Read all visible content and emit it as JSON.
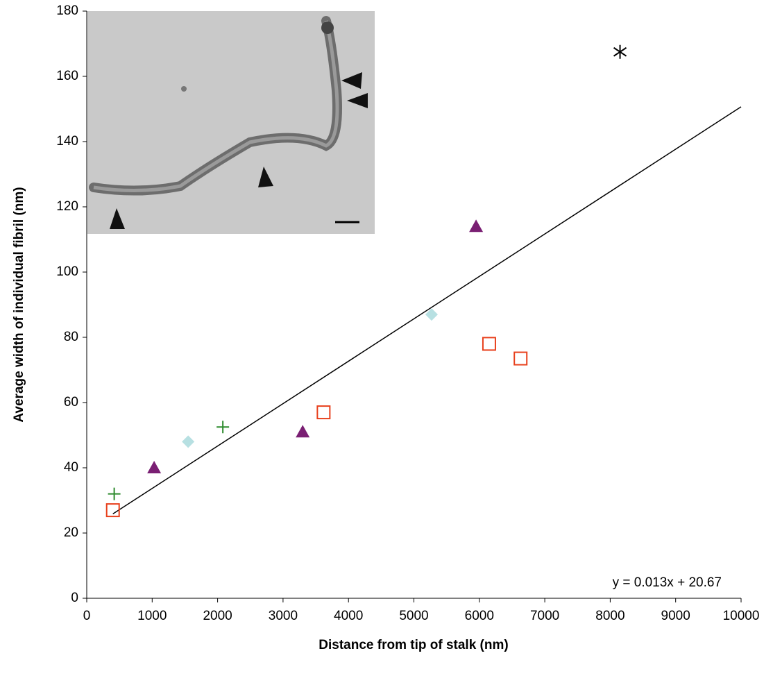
{
  "chart_data": {
    "type": "scatter",
    "xlabel": "Distance from tip of stalk (nm)",
    "ylabel": "Average width of individual fibril (nm)",
    "xlim": [
      0,
      10000
    ],
    "ylim": [
      0,
      180
    ],
    "xticks": [
      0,
      1000,
      2000,
      3000,
      4000,
      5000,
      6000,
      7000,
      8000,
      9000,
      10000
    ],
    "yticks": [
      0,
      20,
      40,
      60,
      80,
      100,
      120,
      140,
      160,
      180
    ],
    "grid": false,
    "series": [
      {
        "marker": "open-square",
        "color": "#e8401c",
        "x": [
          400,
          3620,
          6150,
          6630
        ],
        "values": [
          27,
          57,
          78,
          73.5
        ]
      },
      {
        "marker": "plus",
        "color": "#2e8b2e",
        "x": [
          420,
          2080
        ],
        "values": [
          32,
          52.5
        ]
      },
      {
        "marker": "triangle",
        "color": "#7a1f73",
        "x": [
          1030,
          3300,
          5950
        ],
        "values": [
          40,
          51,
          114
        ]
      },
      {
        "marker": "diamond",
        "color": "#b7e0e2",
        "x": [
          1550,
          5270
        ],
        "values": [
          48,
          87
        ]
      },
      {
        "marker": "asterisk",
        "color": "#000000",
        "x": [
          8150
        ],
        "values": [
          167.5
        ]
      }
    ],
    "trendline": {
      "label": "y = 0.013x + 20.67",
      "slope": 0.013,
      "intercept": 20.67,
      "color": "#000000"
    }
  }
}
